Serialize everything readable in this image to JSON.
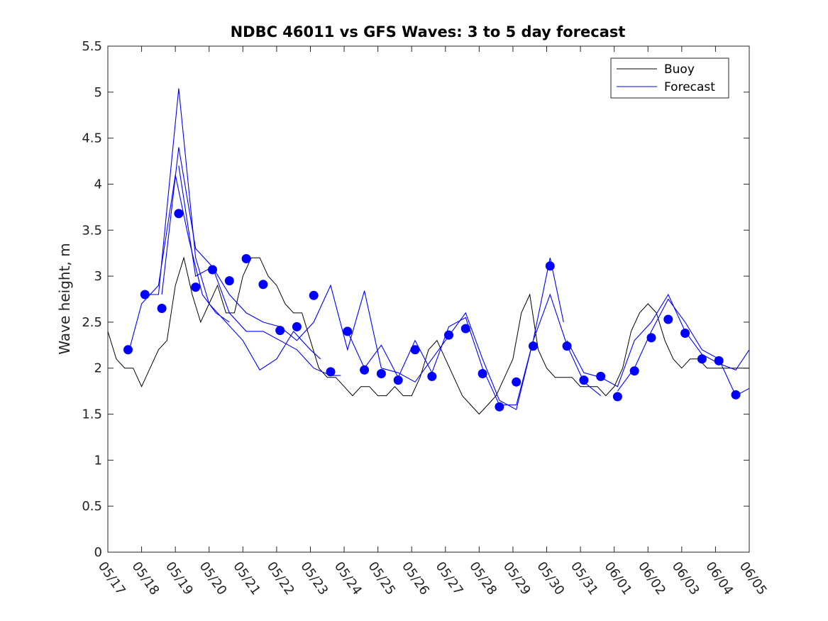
{
  "chart_data": {
    "type": "line",
    "title": "NDBC 46011 vs GFS Waves: 3 to 5 day forecast",
    "xlabel": "",
    "ylabel": "Wave height, m",
    "ylim": [
      0,
      5.5
    ],
    "yticks": [
      0,
      0.5,
      1,
      1.5,
      2,
      2.5,
      3,
      3.5,
      4,
      4.5,
      5,
      5.5
    ],
    "xlim_day": [
      0,
      19
    ],
    "xtick_labels": [
      "05/17",
      "05/18",
      "05/19",
      "05/20",
      "05/21",
      "05/22",
      "05/23",
      "05/24",
      "05/25",
      "05/26",
      "05/27",
      "05/28",
      "05/29",
      "05/30",
      "05/31",
      "06/01",
      "06/02",
      "06/03",
      "06/04",
      "06/05"
    ],
    "grid": false,
    "legend": {
      "placement": "top-right",
      "entries": [
        {
          "label": "Buoy",
          "color": "#000000"
        },
        {
          "label": "Forecast",
          "color": "#0000ff"
        }
      ]
    },
    "buoy_day_index": [
      0,
      0.25,
      0.5,
      0.75,
      1,
      1.25,
      1.5,
      1.75,
      2,
      2.25,
      2.5,
      2.75,
      3,
      3.25,
      3.5,
      3.75,
      4,
      4.25,
      4.5,
      4.75,
      5,
      5.25,
      5.5,
      5.75,
      6,
      6.25,
      6.5,
      6.75,
      7,
      7.25,
      7.5,
      7.75,
      8,
      8.25,
      8.5,
      8.75,
      9,
      9.25,
      9.5,
      9.75,
      10,
      10.25,
      10.5,
      10.75,
      11,
      11.25,
      11.5,
      11.75,
      12,
      12.25,
      12.5,
      12.75,
      13,
      13.25,
      13.5,
      13.75,
      14,
      14.25,
      14.5,
      14.75,
      15,
      15.25,
      15.5,
      15.75,
      16,
      16.25,
      16.5,
      16.75,
      17,
      17.25,
      17.5,
      17.75,
      18,
      18.25,
      18.5,
      18.75,
      19
    ],
    "buoy_height_m": [
      2.4,
      2.1,
      2.0,
      2.0,
      1.8,
      2.0,
      2.2,
      2.3,
      2.9,
      3.2,
      2.8,
      2.5,
      2.7,
      2.9,
      2.6,
      2.6,
      3.0,
      3.2,
      3.2,
      3.0,
      2.9,
      2.7,
      2.6,
      2.6,
      2.3,
      2.0,
      1.9,
      1.9,
      1.8,
      1.7,
      1.8,
      1.8,
      1.7,
      1.7,
      1.8,
      1.7,
      1.7,
      1.9,
      2.2,
      2.3,
      2.1,
      1.9,
      1.7,
      1.6,
      1.5,
      1.6,
      1.7,
      1.9,
      2.1,
      2.6,
      2.8,
      2.2,
      2.0,
      1.9,
      1.9,
      1.9,
      1.8,
      1.8,
      1.8,
      1.7,
      1.8,
      2.0,
      2.4,
      2.6,
      2.7,
      2.6,
      2.3,
      2.1,
      2.0,
      2.1,
      2.1,
      2.0,
      2.0,
      2.0,
      2.0,
      2.0,
      2.0
    ],
    "forecast_dots": {
      "day_index": [
        0.6,
        1.1,
        1.6,
        2.1,
        2.6,
        3.1,
        3.6,
        4.1,
        4.6,
        5.1,
        5.6,
        6.1,
        6.6,
        7.1,
        7.6,
        8.1,
        8.6,
        9.1,
        9.6,
        10.1,
        10.6,
        11.1,
        11.6,
        12.1,
        12.6,
        13.1,
        13.6,
        14.1,
        14.6,
        15.1,
        15.6,
        16.1,
        16.6,
        17.1,
        17.6,
        18.1,
        18.6
      ],
      "height_m": [
        2.2,
        2.8,
        2.65,
        3.68,
        2.88,
        3.07,
        2.95,
        3.19,
        2.91,
        2.41,
        2.45,
        2.79,
        1.96,
        2.4,
        1.98,
        1.94,
        1.87,
        2.2,
        1.91,
        2.36,
        2.43,
        1.94,
        1.58,
        1.85,
        2.24,
        3.11,
        2.24,
        1.87,
        1.91,
        1.69,
        1.97,
        2.33,
        2.53,
        2.38,
        2.1,
        2.08,
        1.71
      ]
    },
    "forecast_runs": [
      {
        "day_index": [
          0.6,
          1.0,
          1.5,
          2.0,
          2.4,
          2.8,
          3.2,
          3.6
        ],
        "height_m": [
          2.15,
          2.7,
          2.9,
          4.1,
          3.4,
          2.8,
          2.6,
          2.5
        ]
      },
      {
        "day_index": [
          1.0,
          1.5,
          2.1,
          2.6,
          3.0,
          3.5,
          4.0,
          4.5,
          5.0,
          5.5,
          6.0,
          6.3
        ],
        "height_m": [
          2.8,
          2.8,
          5.04,
          3.2,
          2.7,
          2.5,
          2.3,
          1.98,
          2.1,
          2.4,
          2.2,
          2.1
        ]
      },
      {
        "day_index": [
          1.6,
          2.1,
          2.6,
          3.1,
          3.6,
          4.1,
          4.6,
          5.1,
          5.6,
          6.1,
          6.6,
          6.9
        ],
        "height_m": [
          2.8,
          4.4,
          3.3,
          3.1,
          2.6,
          2.4,
          2.4,
          2.3,
          2.2,
          2.0,
          1.92,
          1.92
        ]
      },
      {
        "day_index": [
          2.1,
          2.6,
          3.1,
          3.6,
          4.1,
          4.6,
          5.1,
          5.6,
          6.1,
          6.6,
          7.1,
          7.6,
          8.1
        ],
        "height_m": [
          4.2,
          3.0,
          3.1,
          2.8,
          2.6,
          2.5,
          2.45,
          2.3,
          2.5,
          2.9,
          2.2,
          2.84,
          2.0
        ]
      },
      {
        "day_index": [
          7.1,
          7.6,
          8.1,
          8.6,
          9.1,
          9.6,
          10.1,
          10.6,
          11.1,
          11.6,
          12.1,
          12.6,
          13.1,
          13.5
        ],
        "height_m": [
          2.4,
          2.0,
          2.25,
          1.9,
          2.3,
          1.95,
          2.45,
          2.55,
          2.0,
          1.6,
          1.6,
          2.3,
          3.2,
          2.5
        ]
      },
      {
        "day_index": [
          8.1,
          8.6,
          9.1,
          9.6,
          10.1,
          10.6,
          11.1,
          11.6,
          12.1,
          12.6,
          13.1,
          13.6,
          14.1,
          14.6
        ],
        "height_m": [
          2.0,
          1.95,
          1.85,
          2.1,
          2.35,
          2.6,
          2.1,
          1.65,
          1.55,
          2.3,
          2.8,
          2.25,
          1.85,
          1.7
        ]
      },
      {
        "day_index": [
          13.6,
          14.1,
          14.6,
          15.1,
          15.6,
          16.1,
          16.6,
          17.1,
          17.6,
          18.1,
          18.6,
          19.0
        ],
        "height_m": [
          2.3,
          1.95,
          1.9,
          1.8,
          2.3,
          2.5,
          2.8,
          2.4,
          2.15,
          2.05,
          1.98,
          2.2
        ]
      },
      {
        "day_index": [
          15.1,
          15.6,
          16.1,
          16.6,
          17.1,
          17.6,
          18.1,
          18.6,
          19.0
        ],
        "height_m": [
          1.75,
          2.0,
          2.4,
          2.75,
          2.5,
          2.2,
          2.1,
          1.7,
          1.78
        ]
      }
    ]
  }
}
